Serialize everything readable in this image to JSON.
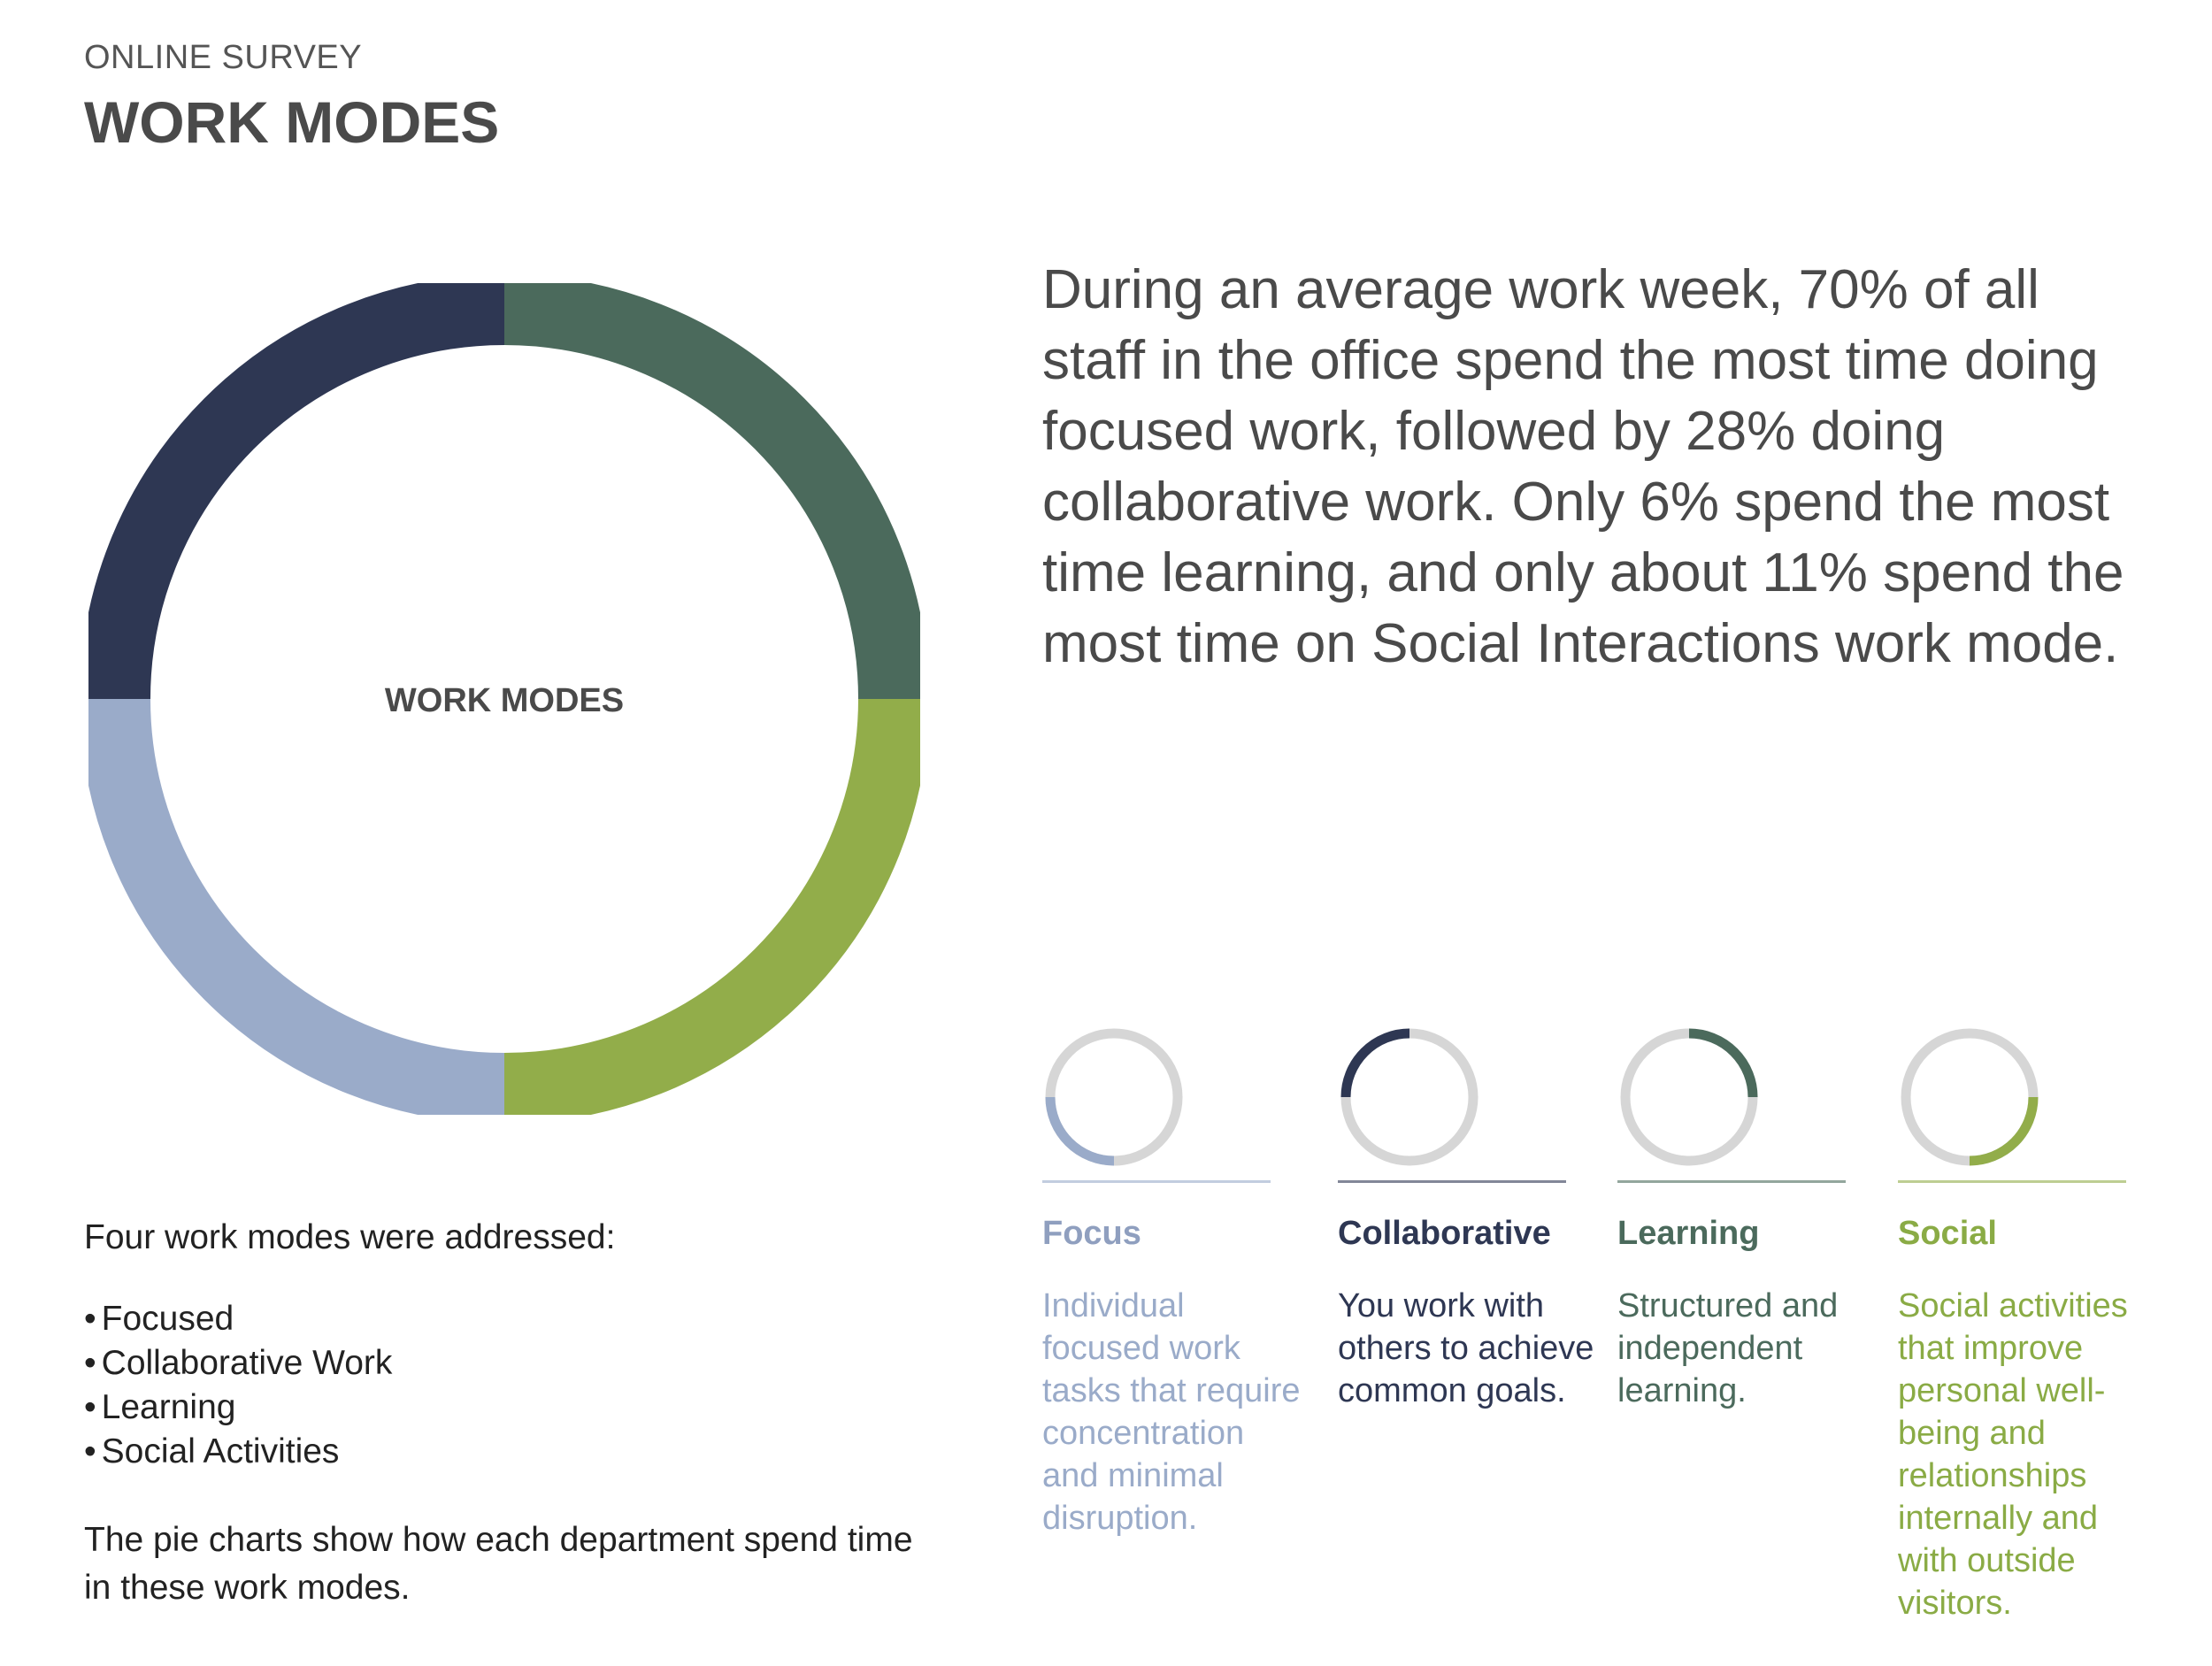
{
  "header": {
    "eyebrow": "ONLINE SURVEY",
    "title": "WORK MODES"
  },
  "summary": "During an average work week, 70% of all staff in the office spend the most time doing focused work, followed by 28% doing collaborative work. Only 6% spend the most time learning, and only about 11% spend the most time on Social Interactions work mode.",
  "intro": {
    "lead": "Four work modes were addressed:",
    "items": [
      "Focused",
      "Collaborative Work",
      "Learning",
      "Social Activities"
    ],
    "note": "The pie charts show how each department spend time in these work modes."
  },
  "chart_data": [
    {
      "type": "pie",
      "title": "WORK MODES",
      "categories": [
        "Focus",
        "Collaborative",
        "Learning",
        "Social"
      ],
      "values": [
        25,
        25,
        25,
        25
      ],
      "colors": [
        "#9aabc9",
        "#2e3753",
        "#4b6a5c",
        "#92ad4a"
      ]
    }
  ],
  "modes": [
    {
      "name": "Focus",
      "description": "Individual focused work tasks that require concentration and minimal disruption.",
      "color": "#8f9fbf",
      "ring_color": "#9aabc9",
      "arc_start": 0.5,
      "arc_end": 0.75
    },
    {
      "name": "Collaborative",
      "description": "You work with others to achieve common goals.",
      "color": "#2e3753",
      "ring_color": "#2e3753",
      "arc_start": 0.75,
      "arc_end": 1.0
    },
    {
      "name": "Learning",
      "description": "Structured and independent learning.",
      "color": "#4b6a5c",
      "ring_color": "#4b6a5c",
      "arc_start": 0.0,
      "arc_end": 0.25
    },
    {
      "name": "Social",
      "description": "Social activities that improve personal well-being and relationships internally and with outside visitors.",
      "color": "#8aab45",
      "ring_color": "#92ad4a",
      "arc_start": 0.25,
      "arc_end": 0.5
    }
  ]
}
